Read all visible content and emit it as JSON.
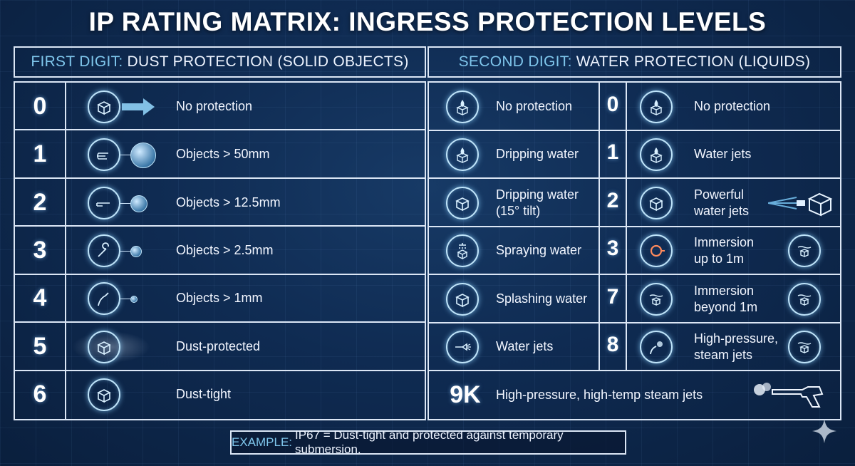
{
  "title": "IP RATING MATRIX: INGRESS PROTECTION LEVELS",
  "dust_header": {
    "accent": "FIRST DIGIT:",
    "text": "DUST PROTECTION (SOLID OBJECTS)"
  },
  "water_header": {
    "accent": "SECOND DIGIT:",
    "text": "WATER PROTECTION (LIQUIDS)"
  },
  "dust_rows": [
    {
      "digit": "0",
      "label": "No protection",
      "icon": "box-arrow-icon"
    },
    {
      "digit": "1",
      "label": "Objects > 50mm",
      "icon": "hand-icon"
    },
    {
      "digit": "2",
      "label": "Objects > 12.5mm",
      "icon": "finger-icon"
    },
    {
      "digit": "3",
      "label": "Objects > 2.5mm",
      "icon": "wrench-icon"
    },
    {
      "digit": "4",
      "label": "Objects > 1mm",
      "icon": "wire-icon"
    },
    {
      "digit": "5",
      "label": "Dust-protected",
      "icon": "dusty-box-icon"
    },
    {
      "digit": "6",
      "label": "Dust-tight",
      "icon": "sealed-box-icon"
    }
  ],
  "water_left": [
    {
      "label": "No protection",
      "icon": "drop-box-icon"
    },
    {
      "label": "Dripping water",
      "icon": "drip-box-icon"
    },
    {
      "label": "Dripping water\n(15° tilt)",
      "icon": "tilted-box-icon"
    },
    {
      "label": "Spraying water",
      "icon": "shower-icon"
    },
    {
      "label": "Splashing water",
      "icon": "splash-icon"
    },
    {
      "label": "Water jets",
      "icon": "nozzle-icon"
    }
  ],
  "water_right": [
    {
      "digit": "0",
      "label": "No protection",
      "icon": "drop-box-icon"
    },
    {
      "digit": "1",
      "label": "Water jets",
      "icon": "arrows-box-icon"
    },
    {
      "digit": "2",
      "label": "Powerful\nwater jets",
      "icon": "jet-box-icon"
    },
    {
      "digit": "3",
      "label": "Immersion\nup to 1m",
      "icon": "hose-reel-icon"
    },
    {
      "digit": "7",
      "label": "Immersion\nbeyond 1m",
      "icon": "submerged-box-icon"
    },
    {
      "digit": "8",
      "label": "High-pressure,\nsteam jets",
      "icon": "steam-wand-icon"
    }
  ],
  "nine_k": {
    "digit": "9K",
    "label": "High-pressure, high-temp steam jets",
    "icon": "pressure-gun-icon"
  },
  "example": {
    "accent": "EXAMPLE:",
    "text": "IP67 = Dust-tight and protected against temporary submersion."
  },
  "colors": {
    "background": "#0f2b52",
    "accent": "#7fc6ec",
    "line": "#dbe6f5",
    "glow": "#bfe4fa"
  }
}
